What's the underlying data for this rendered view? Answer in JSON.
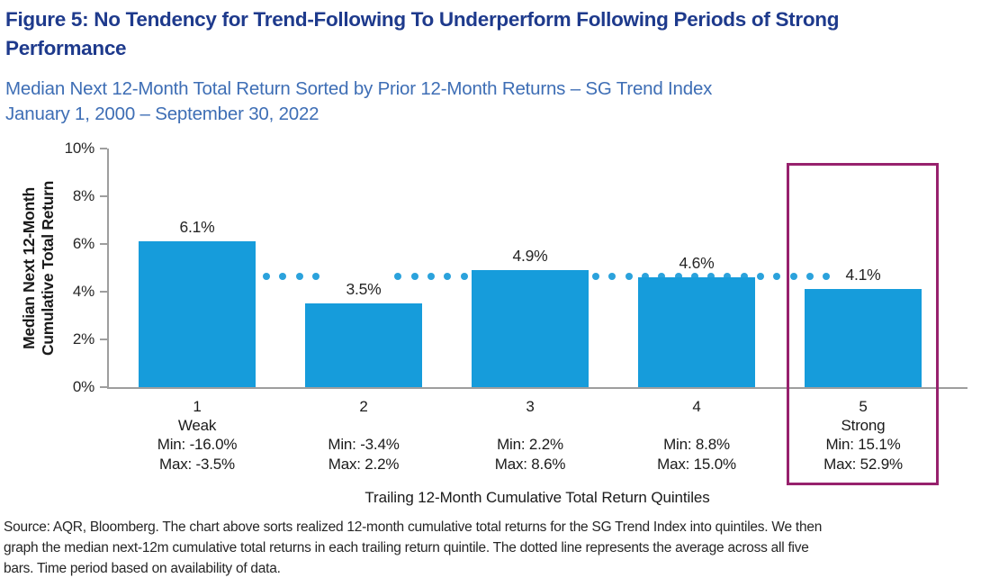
{
  "figure": {
    "title_line1": "Figure 5: No Tendency for Trend-Following To Underperform Following Periods of Strong",
    "title_line2": "Performance",
    "subtitle_line1": "Median Next 12-Month Total Return Sorted by Prior 12-Month Returns – SG Trend Index",
    "subtitle_line2": "January 1, 2000 – September 30, 2022",
    "title_color": "#1e3a8c",
    "subtitle_color": "#3e6eb5",
    "source_lines": [
      "Source: AQR, Bloomberg. The chart above sorts realized 12-month cumulative total returns for the SG Trend Index into quintiles. We then",
      "graph the median next-12m cumulative total returns in each trailing return quintile. The dotted line represents the average across all five",
      "bars. Time period based on availability of data."
    ]
  },
  "chart_data": {
    "type": "bar",
    "title": "Median Next 12-Month Total Return Sorted by Prior 12-Month Returns – SG Trend Index",
    "period": "January 1, 2000 – September 30, 2022",
    "categories": [
      {
        "label": "1",
        "qualifier": "Weak",
        "min": "Min: -16.0%",
        "max": "Max: -3.5%"
      },
      {
        "label": "2",
        "qualifier": "",
        "min": "Min: -3.4%",
        "max": "Max: 2.2%"
      },
      {
        "label": "3",
        "qualifier": "",
        "min": "Min: 2.2%",
        "max": "Max: 8.6%"
      },
      {
        "label": "4",
        "qualifier": "",
        "min": "Min: 8.8%",
        "max": "Max: 15.0%"
      },
      {
        "label": "5",
        "qualifier": "Strong",
        "min": "Min: 15.1%",
        "max": "Max: 52.9%"
      }
    ],
    "values": [
      6.1,
      3.5,
      4.9,
      4.6,
      4.1
    ],
    "value_labels": [
      "6.1%",
      "3.5%",
      "4.9%",
      "4.6%",
      "4.1%"
    ],
    "average_line_value": 4.64,
    "average_line_style": "dotted",
    "y_ticks": [
      "10%",
      "8%",
      "6%",
      "4%",
      "2%",
      "0%"
    ],
    "ylim": [
      0,
      10
    ],
    "ylabel_line1": "Median Next 12-Month",
    "ylabel_line2": "Cumulative Total Return",
    "xlabel": "Trailing 12-Month Cumulative Total Return Quintiles",
    "highlighted_category": "5",
    "bar_color": "#169cdb",
    "dot_color": "#2ba2dc",
    "highlight_color": "#97216d",
    "axis_color": "#9e9e9e",
    "grid": false,
    "legend": false
  }
}
